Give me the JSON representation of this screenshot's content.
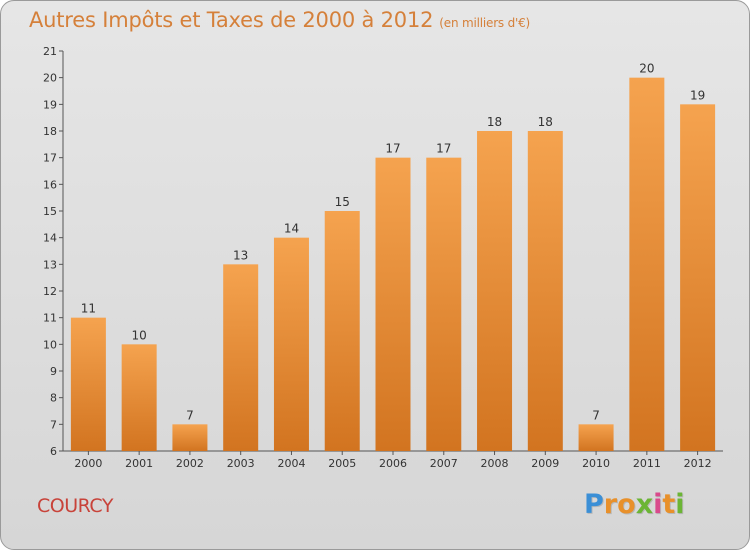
{
  "title": "Autres Impôts et Taxes de 2000 à 2012",
  "subtitle": "(en milliers d'€)",
  "commune": "COURCY",
  "logo": {
    "letters": [
      "P",
      "r",
      "o",
      "x",
      "i",
      "t",
      "i"
    ],
    "colors": [
      "#3b8fd6",
      "#e8902a",
      "#e8902a",
      "#6bb535",
      "#d94a8c",
      "#e8902a",
      "#6bb535"
    ]
  },
  "colors": {
    "bar_top": "#f5a34f",
    "bar_bottom": "#d27420",
    "title": "#d5803a",
    "commune": "#c8433a"
  },
  "chart_data": {
    "type": "bar",
    "title": "Autres Impôts et Taxes de 2000 à 2012",
    "subtitle": "(en milliers d'€)",
    "categories": [
      "2000",
      "2001",
      "2002",
      "2003",
      "2004",
      "2005",
      "2006",
      "2007",
      "2008",
      "2009",
      "2010",
      "2011",
      "2012"
    ],
    "values": [
      11,
      10,
      7,
      13,
      14,
      15,
      17,
      17,
      18,
      18,
      7,
      20,
      19
    ],
    "ylim": [
      6,
      21
    ],
    "yticks": [
      6,
      7,
      8,
      9,
      10,
      11,
      12,
      13,
      14,
      15,
      16,
      17,
      18,
      19,
      20,
      21
    ],
    "grid": false,
    "xlabel": "",
    "ylabel": ""
  }
}
